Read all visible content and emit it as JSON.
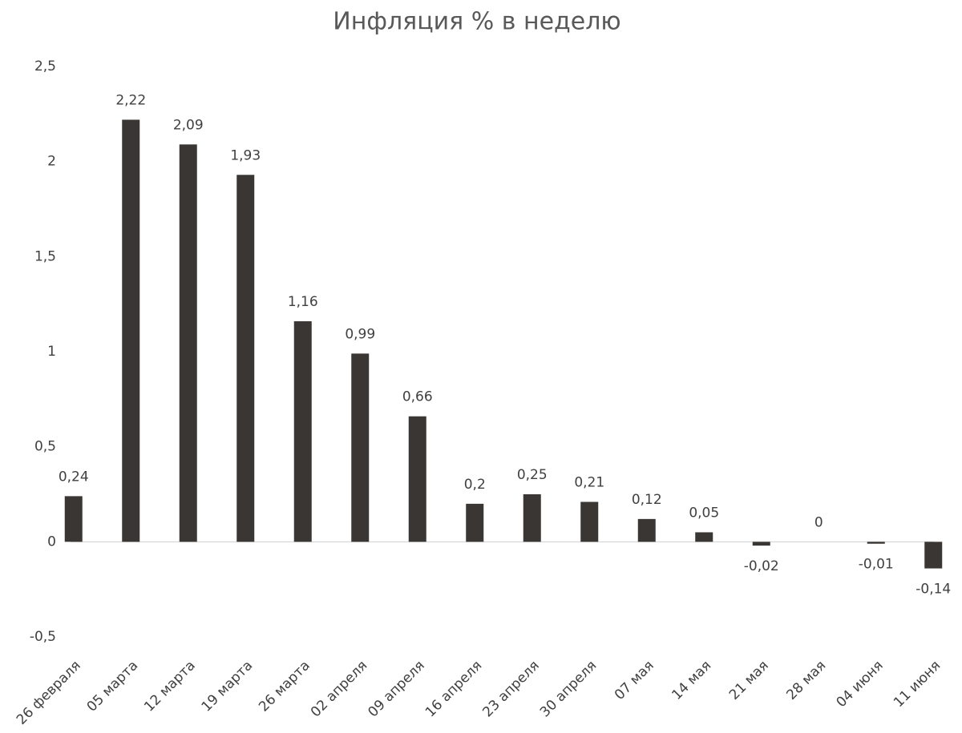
{
  "chart_data": {
    "type": "bar",
    "title": "Инфляция % в неделю",
    "categories": [
      "26 февраля",
      "05 марта",
      "12 марта",
      "19 марта",
      "26 марта",
      "02 апреля",
      "09 апреля",
      "16 апреля",
      "23 апреля",
      "30 апреля",
      "07 мая",
      "14 мая",
      "21 мая",
      "28 мая",
      "04 июня",
      "11 июня"
    ],
    "values": [
      0.24,
      2.22,
      2.09,
      1.93,
      1.16,
      0.99,
      0.66,
      0.2,
      0.25,
      0.21,
      0.12,
      0.05,
      -0.02,
      0,
      -0.01,
      -0.14
    ],
    "value_labels": [
      "0,24",
      "2,22",
      "2,09",
      "1,93",
      "1,16",
      "0,99",
      "0,66",
      "0,2",
      "0,25",
      "0,21",
      "0,12",
      "0,05",
      "-0,02",
      "0",
      "-0,01",
      "-0,14"
    ],
    "color": "#3a3633",
    "ylim": [
      -0.5,
      2.5
    ],
    "yticks": [
      {
        "value": -0.5,
        "label": "-0,5"
      },
      0,
      {
        "value": 0.5,
        "label": "0,5"
      },
      1,
      {
        "value": 1.5,
        "label": "1,5"
      },
      2,
      {
        "value": 2.5,
        "label": "2,5"
      }
    ],
    "grid": false
  }
}
